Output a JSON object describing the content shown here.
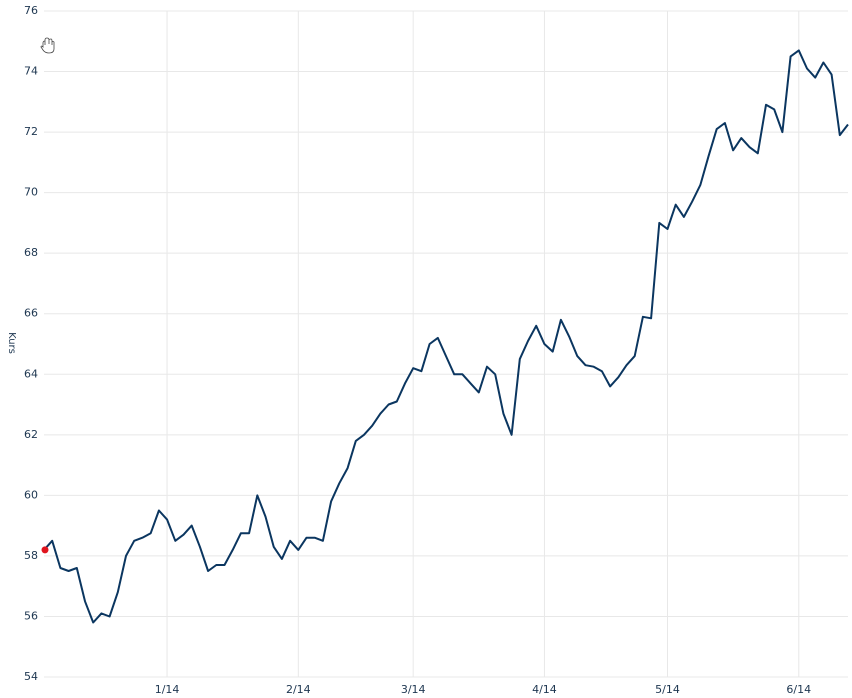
{
  "chart_data": {
    "type": "line",
    "y_label": "Kurs",
    "categories": [
      null,
      null,
      null,
      null,
      null,
      null,
      null,
      null,
      null,
      null,
      null,
      null,
      null,
      null,
      null,
      "1/14",
      null,
      null,
      null,
      null,
      null,
      null,
      null,
      null,
      null,
      null,
      null,
      null,
      null,
      null,
      null,
      "2/14",
      null,
      null,
      null,
      null,
      null,
      null,
      null,
      null,
      null,
      null,
      null,
      null,
      null,
      "3/14",
      null,
      null,
      null,
      null,
      null,
      null,
      null,
      null,
      null,
      null,
      null,
      null,
      null,
      null,
      null,
      "4/14",
      null,
      null,
      null,
      null,
      null,
      null,
      null,
      null,
      null,
      null,
      null,
      null,
      null,
      null,
      "5/14",
      null,
      null,
      null,
      null,
      null,
      null,
      null,
      null,
      null,
      null,
      null,
      null,
      null,
      null,
      null,
      "6/14",
      null,
      null,
      null,
      null,
      null,
      null
    ],
    "values": [
      58.2,
      58.5,
      57.6,
      57.5,
      57.6,
      56.5,
      55.8,
      56.1,
      56.0,
      56.8,
      58.0,
      58.5,
      58.6,
      58.75,
      59.5,
      59.2,
      58.5,
      58.7,
      59.0,
      58.3,
      57.5,
      57.7,
      57.7,
      58.2,
      58.75,
      58.75,
      60.0,
      59.3,
      58.3,
      57.9,
      58.5,
      58.2,
      58.6,
      58.6,
      58.5,
      59.8,
      60.4,
      60.9,
      61.8,
      62.0,
      62.3,
      62.7,
      63.0,
      63.1,
      63.7,
      64.2,
      64.1,
      65.0,
      65.2,
      64.6,
      64.0,
      64.0,
      63.7,
      63.4,
      64.25,
      64.0,
      62.7,
      62.0,
      64.5,
      65.1,
      65.6,
      65.0,
      64.75,
      65.8,
      65.25,
      64.6,
      64.3,
      64.25,
      64.1,
      63.6,
      63.9,
      64.3,
      64.6,
      65.9,
      65.85,
      69.0,
      68.8,
      69.6,
      69.2,
      69.7,
      70.25,
      71.2,
      72.1,
      72.3,
      71.4,
      71.8,
      71.5,
      71.3,
      72.9,
      72.75,
      72.0,
      74.5,
      74.7,
      74.1,
      73.8,
      74.3,
      73.9,
      71.9,
      72.25
    ],
    "color": "#0b3660",
    "ylim": [
      54,
      76
    ],
    "yticks": [
      54,
      56,
      58,
      60,
      62,
      64,
      66,
      68,
      70,
      72,
      74,
      76
    ],
    "grid": true
  }
}
